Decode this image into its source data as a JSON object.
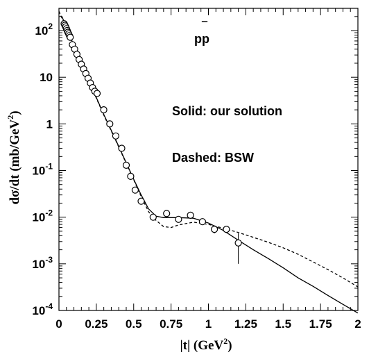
{
  "chart_data": {
    "type": "scatter",
    "xlabel_main": "|t| (GeV",
    "xlabel_sup": "2",
    "xlabel_tail": ")",
    "ylabel_main": "dσ/dt (mb/GeV",
    "ylabel_sup": "2",
    "ylabel_tail": ")",
    "xlim": [
      0,
      2
    ],
    "ylim": [
      0.0001,
      300
    ],
    "y_scale": "log",
    "x_ticks": [
      {
        "value": 0,
        "label": "0"
      },
      {
        "value": 0.25,
        "label": "0.25"
      },
      {
        "value": 0.5,
        "label": "0.5"
      },
      {
        "value": 0.75,
        "label": "0.75"
      },
      {
        "value": 1,
        "label": "1"
      },
      {
        "value": 1.25,
        "label": "1.25"
      },
      {
        "value": 1.5,
        "label": "1.5"
      },
      {
        "value": 1.75,
        "label": "1.75"
      },
      {
        "value": 2,
        "label": "2"
      }
    ],
    "y_ticks": [
      {
        "value": 100,
        "base": "10",
        "exp": "2"
      },
      {
        "value": 10,
        "base": "10",
        "exp": ""
      },
      {
        "value": 1,
        "base": "1",
        "exp": ""
      },
      {
        "value": 0.1,
        "base": "10",
        "exp": "-1"
      },
      {
        "value": 0.01,
        "base": "10",
        "exp": "-2"
      },
      {
        "value": 0.001,
        "base": "10",
        "exp": "-3"
      },
      {
        "value": 0.0001,
        "base": "10",
        "exp": "-4"
      }
    ],
    "annotations": {
      "process_main": "pp",
      "process_bar": "‾",
      "solid_label": "Solid: our solution",
      "dashed_label": "Dashed: BSW"
    },
    "series": [
      {
        "style": "open-circles",
        "points": [
          [
            0.035,
            140
          ],
          [
            0.04,
            130
          ],
          [
            0.045,
            120
          ],
          [
            0.05,
            110
          ],
          [
            0.055,
            100
          ],
          [
            0.06,
            92
          ],
          [
            0.065,
            85
          ],
          [
            0.07,
            78
          ],
          [
            0.075,
            72
          ],
          [
            0.09,
            50
          ],
          [
            0.105,
            40
          ],
          [
            0.12,
            31
          ],
          [
            0.135,
            24
          ],
          [
            0.15,
            19
          ],
          [
            0.165,
            15
          ],
          [
            0.18,
            12
          ],
          [
            0.195,
            9.5
          ],
          [
            0.21,
            7.5
          ],
          [
            0.225,
            6.0
          ],
          [
            0.24,
            5.0
          ],
          [
            0.255,
            4.5
          ],
          [
            0.3,
            2.0
          ],
          [
            0.34,
            1.0
          ],
          [
            0.38,
            0.55
          ],
          [
            0.42,
            0.3
          ],
          [
            0.45,
            0.13
          ],
          [
            0.48,
            0.075
          ],
          [
            0.51,
            0.038
          ],
          [
            0.55,
            0.022
          ],
          [
            0.63,
            0.01
          ],
          [
            0.72,
            0.012
          ],
          [
            0.8,
            0.009
          ],
          [
            0.88,
            0.011
          ],
          [
            0.96,
            0.008
          ],
          [
            1.04,
            0.0055
          ],
          [
            1.12,
            0.0055
          ],
          [
            1.2,
            0.0028
          ]
        ],
        "error_bars": [
          {
            "x": 1.04,
            "lo": 0.0045,
            "hi": 0.0065
          },
          {
            "x": 1.2,
            "lo": 0.001,
            "hi": 0.0045
          }
        ]
      },
      {
        "style": "solid",
        "points": [
          [
            0.02,
            200
          ],
          [
            0.1,
            48
          ],
          [
            0.2,
            8.5
          ],
          [
            0.3,
            1.6
          ],
          [
            0.4,
            0.33
          ],
          [
            0.5,
            0.065
          ],
          [
            0.55,
            0.03
          ],
          [
            0.6,
            0.015
          ],
          [
            0.65,
            0.0105
          ],
          [
            0.7,
            0.0098
          ],
          [
            0.8,
            0.0098
          ],
          [
            0.9,
            0.0095
          ],
          [
            1.0,
            0.0075
          ],
          [
            1.1,
            0.0052
          ],
          [
            1.2,
            0.0032
          ],
          [
            1.3,
            0.002
          ],
          [
            1.4,
            0.0013
          ],
          [
            1.5,
            0.00082
          ],
          [
            1.6,
            0.0005
          ],
          [
            1.7,
            0.00033
          ],
          [
            1.8,
            0.00021
          ],
          [
            1.9,
            0.000135
          ],
          [
            2.0,
            8.8e-05
          ]
        ]
      },
      {
        "style": "dashed",
        "points": [
          [
            0.0,
            260
          ],
          [
            0.05,
            110
          ],
          [
            0.1,
            46
          ],
          [
            0.2,
            8.2
          ],
          [
            0.3,
            1.55
          ],
          [
            0.4,
            0.32
          ],
          [
            0.5,
            0.063
          ],
          [
            0.55,
            0.028
          ],
          [
            0.6,
            0.013
          ],
          [
            0.65,
            0.0085
          ],
          [
            0.7,
            0.0063
          ],
          [
            0.75,
            0.006
          ],
          [
            0.8,
            0.0068
          ],
          [
            0.9,
            0.0078
          ],
          [
            1.0,
            0.007
          ],
          [
            1.1,
            0.0058
          ],
          [
            1.2,
            0.0047
          ],
          [
            1.3,
            0.0037
          ],
          [
            1.4,
            0.0029
          ],
          [
            1.5,
            0.0022
          ],
          [
            1.6,
            0.0016
          ],
          [
            1.7,
            0.0011
          ],
          [
            1.8,
            0.00075
          ],
          [
            1.9,
            0.0005
          ],
          [
            2.0,
            0.00032
          ]
        ]
      }
    ]
  }
}
